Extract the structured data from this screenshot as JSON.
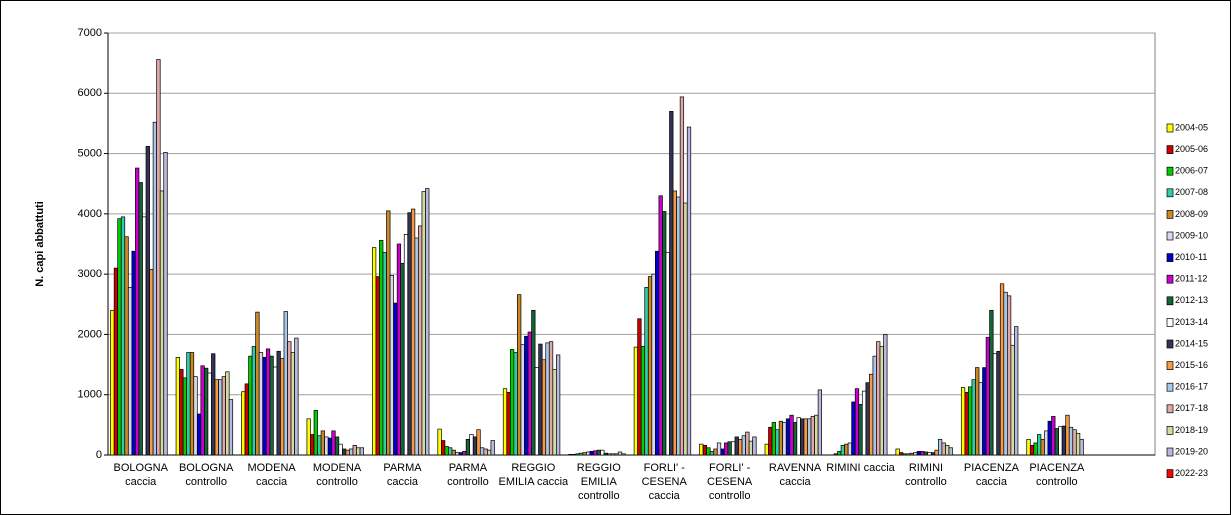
{
  "chart_data": {
    "type": "bar",
    "y_label": "N. capi abbattuti",
    "categories": [
      "BOLOGNA\ncaccia",
      "BOLOGNA\ncontrollo",
      "MODENA\ncaccia",
      "MODENA\ncontrollo",
      "PARMA\ncaccia",
      "PARMA\ncontrollo",
      "REGGIO\nEMILIA caccia",
      "REGGIO\nEMILIA\ncontrollo",
      "FORLI' -\nCESENA\ncaccia",
      "FORLI' -\nCESENA\ncontrollo",
      "RAVENNA\ncaccia",
      "RIMINI caccia",
      "RIMINI\ncontrollo",
      "PIACENZA\ncaccia",
      "PIACENZA\ncontrollo",
      null
    ],
    "series": [
      {
        "name": "2004-05",
        "color": "#ffff00",
        "values": [
          2400,
          1620,
          1050,
          600,
          3440,
          430,
          1100,
          10,
          1790,
          180,
          180,
          0,
          100,
          1120,
          260,
          null
        ]
      },
      {
        "name": "2005-06",
        "color": "#cc0000",
        "values": [
          3100,
          1420,
          1180,
          340,
          2960,
          240,
          1040,
          10,
          2260,
          160,
          460,
          20,
          40,
          1040,
          160,
          null
        ]
      },
      {
        "name": "2006-07",
        "color": "#00cc00",
        "values": [
          3920,
          1280,
          1640,
          740,
          3560,
          140,
          1750,
          20,
          1800,
          120,
          540,
          60,
          20,
          1130,
          200,
          null
        ]
      },
      {
        "name": "2007-08",
        "color": "#33ccaa",
        "values": [
          3950,
          1700,
          1800,
          320,
          3360,
          120,
          1700,
          30,
          2780,
          60,
          420,
          160,
          20,
          1250,
          340,
          null
        ]
      },
      {
        "name": "2008-09",
        "color": "#cc8822",
        "values": [
          3620,
          1700,
          2370,
          400,
          4050,
          80,
          2660,
          40,
          2960,
          100,
          560,
          180,
          30,
          1450,
          260,
          null
        ]
      },
      {
        "name": "2009-10",
        "color": "#d8d8f0",
        "values": [
          2780,
          1300,
          1700,
          300,
          2980,
          40,
          1830,
          50,
          3000,
          200,
          540,
          200,
          40,
          1200,
          400,
          null
        ]
      },
      {
        "name": "2010-11",
        "color": "#0000cc",
        "values": [
          3380,
          680,
          1620,
          280,
          2520,
          40,
          1970,
          60,
          3380,
          100,
          600,
          880,
          60,
          1450,
          560,
          null
        ]
      },
      {
        "name": "2011-12",
        "color": "#cc00cc",
        "values": [
          4760,
          1480,
          1760,
          400,
          3500,
          60,
          2040,
          70,
          4300,
          200,
          660,
          1100,
          60,
          1950,
          640,
          null
        ]
      },
      {
        "name": "2012-13",
        "color": "#116633",
        "values": [
          4520,
          1440,
          1640,
          300,
          3180,
          260,
          2400,
          80,
          4040,
          220,
          540,
          840,
          50,
          2400,
          440,
          null
        ]
      },
      {
        "name": "2013-14",
        "color": "#ffffff",
        "values": [
          3950,
          1360,
          1460,
          180,
          3660,
          340,
          1450,
          80,
          3360,
          220,
          620,
          1060,
          40,
          1680,
          470,
          null
        ]
      },
      {
        "name": "2014-15",
        "color": "#333355",
        "values": [
          5120,
          1680,
          1720,
          100,
          4020,
          300,
          1840,
          30,
          5700,
          300,
          600,
          1200,
          40,
          1720,
          480,
          null
        ]
      },
      {
        "name": "2015-16",
        "color": "#f59a45",
        "values": [
          3080,
          1250,
          1600,
          80,
          4080,
          420,
          1580,
          20,
          4380,
          260,
          600,
          1340,
          80,
          2840,
          660,
          null
        ]
      },
      {
        "name": "2016-17",
        "color": "#a8c8e8",
        "values": [
          5520,
          1250,
          2380,
          100,
          3600,
          120,
          1860,
          20,
          4280,
          320,
          600,
          1640,
          260,
          2700,
          460,
          null
        ]
      },
      {
        "name": "2017-18",
        "color": "#e0a8a8",
        "values": [
          6560,
          1300,
          1880,
          160,
          3800,
          100,
          1880,
          20,
          5940,
          380,
          640,
          1880,
          200,
          2640,
          420,
          null
        ]
      },
      {
        "name": "2018-19",
        "color": "#d0dca0",
        "values": [
          4380,
          1380,
          1700,
          120,
          4370,
          80,
          1420,
          50,
          4180,
          230,
          660,
          1800,
          160,
          1820,
          360,
          null
        ]
      },
      {
        "name": "2019-20",
        "color": "#b8b8e0",
        "values": [
          5020,
          920,
          1940,
          120,
          4420,
          240,
          1660,
          20,
          5440,
          300,
          1080,
          2000,
          120,
          2130,
          260,
          null
        ]
      },
      {
        "name": "2022-23",
        "color": "#ff0000",
        "values": [
          null,
          null,
          null,
          null,
          null,
          null,
          null,
          null,
          null,
          null,
          null,
          null,
          null,
          null,
          null,
          null
        ]
      }
    ],
    "ylim": [
      0,
      7000
    ],
    "yticks": [
      0,
      1000,
      2000,
      3000,
      4000,
      5000,
      6000,
      7000
    ],
    "grid": true
  }
}
